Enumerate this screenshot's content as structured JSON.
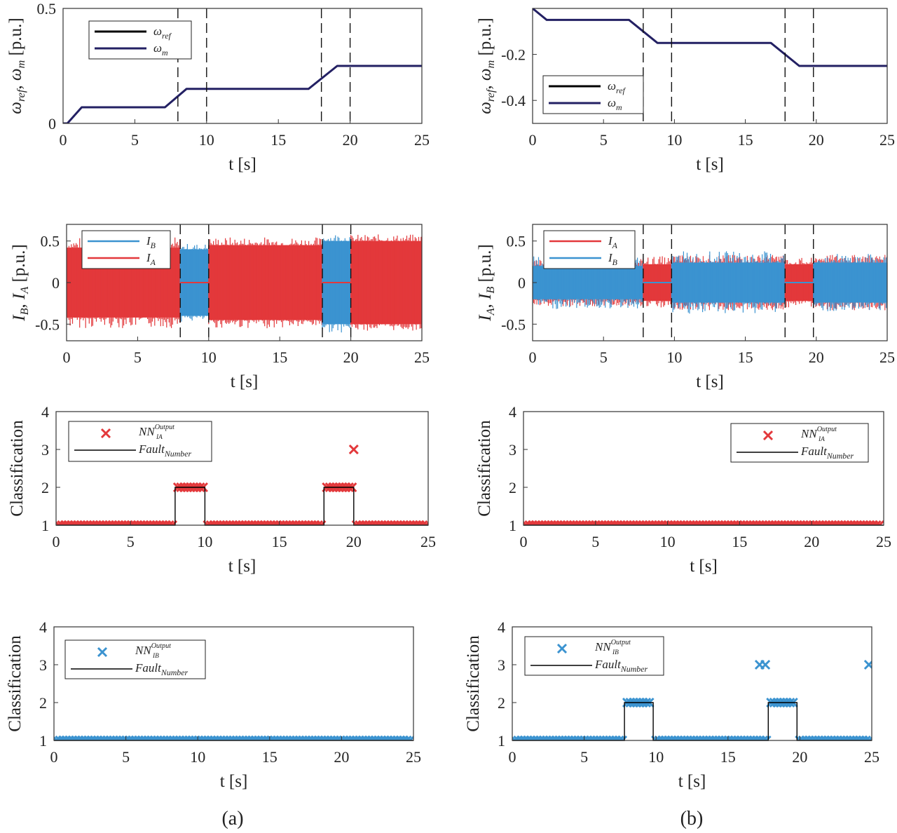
{
  "colors": {
    "ref": "#000000",
    "wm": "#232063",
    "ia": "#e3383b",
    "ib": "#3b93d0",
    "axis": "#333333"
  },
  "captions": [
    "(a)",
    "(b)"
  ],
  "chart_data": [
    {
      "id": "a-speed",
      "type": "line",
      "xlabel": "t [s]",
      "ylabel": "ωref, ωm [p.u.]",
      "xlim": [
        0,
        25
      ],
      "ylim": [
        0,
        0.5
      ],
      "xticks": [
        0,
        5,
        10,
        15,
        20,
        25
      ],
      "yticks": [
        0,
        0.5
      ],
      "vlines": [
        8,
        10,
        18,
        20
      ],
      "legend_position": "top-left",
      "series": [
        {
          "name": "ωref",
          "base": "ω",
          "sub": "ref",
          "color": "#000000",
          "x": [
            0,
            0.3,
            1.3,
            7.1,
            8.6,
            17.1,
            19.1,
            25
          ],
          "y": [
            0,
            0,
            0.07,
            0.07,
            0.15,
            0.15,
            0.25,
            0.25
          ]
        },
        {
          "name": "ωm",
          "base": "ω",
          "sub": "m",
          "color": "#232063",
          "x": [
            0,
            0.3,
            1.3,
            7.1,
            8.6,
            17.1,
            19.1,
            25
          ],
          "y": [
            0,
            0,
            0.07,
            0.07,
            0.15,
            0.15,
            0.25,
            0.25
          ]
        }
      ]
    },
    {
      "id": "b-speed",
      "type": "line",
      "xlabel": "t [s]",
      "ylabel": "ωref, ωm [p.u.]",
      "xlim": [
        0,
        25
      ],
      "ylim": [
        -0.5,
        0
      ],
      "xticks": [
        0,
        5,
        10,
        15,
        20,
        25
      ],
      "yticks": [
        -0.2,
        -0.4
      ],
      "vlines": [
        7.8,
        9.8,
        17.8,
        19.8
      ],
      "legend_position": "bottom-left",
      "series": [
        {
          "name": "ωref",
          "base": "ω",
          "sub": "ref",
          "color": "#000000",
          "x": [
            0,
            1,
            6.8,
            8.8,
            16.8,
            18.8,
            25
          ],
          "y": [
            0,
            -0.05,
            -0.05,
            -0.15,
            -0.15,
            -0.25,
            -0.25
          ]
        },
        {
          "name": "ωm",
          "base": "ω",
          "sub": "m",
          "color": "#232063",
          "x": [
            0,
            1,
            6.8,
            8.8,
            16.8,
            18.8,
            25
          ],
          "y": [
            0,
            -0.05,
            -0.05,
            -0.15,
            -0.15,
            -0.25,
            -0.25
          ]
        }
      ]
    },
    {
      "id": "a-current",
      "type": "line",
      "xlabel": "t [s]",
      "ylabel": "IB, IA [p.u.]",
      "xlim": [
        0,
        25
      ],
      "ylim": [
        -0.7,
        0.7
      ],
      "xticks": [
        0,
        5,
        10,
        15,
        20,
        25
      ],
      "yticks": [
        0.5,
        0,
        -0.5
      ],
      "vlines": [
        8,
        10,
        18,
        20
      ],
      "legend_position": "top-left",
      "series": [
        {
          "name": "IB",
          "base": "I",
          "sub": "B",
          "color": "#3b93d0"
        },
        {
          "name": "IA",
          "base": "I",
          "sub": "A",
          "color": "#e3383b"
        }
      ],
      "bands": [
        {
          "x0": 0,
          "x1": 8,
          "series": "IA",
          "amplitude": 0.42,
          "spikes": 0.55
        },
        {
          "x0": 8,
          "x1": 10,
          "series": "IB",
          "amplitude": 0.4,
          "spikes": 0.47,
          "flat": "IA"
        },
        {
          "x0": 10,
          "x1": 18,
          "series": "IA",
          "amplitude": 0.45,
          "spikes": 0.55
        },
        {
          "x0": 18,
          "x1": 20,
          "series": "IB",
          "amplitude": 0.5,
          "spikes": 0.6,
          "flat": "IA"
        },
        {
          "x0": 20,
          "x1": 25,
          "series": "IA",
          "amplitude": 0.5,
          "spikes": 0.58
        }
      ]
    },
    {
      "id": "b-current",
      "type": "line",
      "xlabel": "t [s]",
      "ylabel": "IA, IB [p.u.]",
      "xlim": [
        0,
        25
      ],
      "ylim": [
        -0.7,
        0.7
      ],
      "xticks": [
        0,
        5,
        10,
        15,
        20,
        25
      ],
      "yticks": [
        0.5,
        0,
        -0.5
      ],
      "vlines": [
        7.8,
        9.8,
        17.8,
        19.8
      ],
      "legend_position": "top-left",
      "series": [
        {
          "name": "IA",
          "base": "I",
          "sub": "A",
          "color": "#e3383b"
        },
        {
          "name": "IB",
          "base": "I",
          "sub": "B",
          "color": "#3b93d0"
        }
      ],
      "bands": [
        {
          "x0": 0,
          "x1": 7.8,
          "series": "IB",
          "amplitude": 0.2,
          "spikes": 0.32,
          "under": "IA"
        },
        {
          "x0": 7.8,
          "x1": 9.8,
          "series": "IA",
          "amplitude": 0.22,
          "spikes": 0.32,
          "flat": "IB"
        },
        {
          "x0": 9.8,
          "x1": 17.8,
          "series": "IB",
          "amplitude": 0.24,
          "spikes": 0.38,
          "under": "IA"
        },
        {
          "x0": 17.8,
          "x1": 19.8,
          "series": "IA",
          "amplitude": 0.22,
          "spikes": 0.3,
          "flat": "IB"
        },
        {
          "x0": 19.8,
          "x1": 25,
          "series": "IB",
          "amplitude": 0.24,
          "spikes": 0.35,
          "under": "IA"
        }
      ]
    },
    {
      "id": "a-class-ia",
      "type": "scatter",
      "xlabel": "t [s]",
      "ylabel": "Classification",
      "xlim": [
        0,
        25
      ],
      "ylim": [
        1,
        4
      ],
      "xticks": [
        0,
        5,
        10,
        15,
        20,
        25
      ],
      "yticks": [
        1,
        2,
        3,
        4
      ],
      "legend_position": "top-left",
      "marker_color": "#e3383b",
      "legend": {
        "nn": "NN",
        "nn_sub": "IA",
        "nn_sup": "Output",
        "fault": "Fault",
        "fault_sub": "Number"
      },
      "fault_number": {
        "x": [
          0,
          8,
          8,
          10,
          10,
          18,
          18,
          20,
          20,
          25
        ],
        "y": [
          1,
          1,
          2,
          2,
          1,
          1,
          2,
          2,
          1,
          1
        ]
      },
      "nn_output_segments": [
        {
          "x0": 0,
          "x1": 8,
          "y": 1
        },
        {
          "x0": 8,
          "x1": 10,
          "y": 2
        },
        {
          "x0": 10,
          "x1": 18,
          "y": 1
        },
        {
          "x0": 18,
          "x1": 20,
          "y": 2
        },
        {
          "x0": 20,
          "x1": 25,
          "y": 1
        }
      ],
      "nn_output_points": [
        {
          "x": 20,
          "y": 3
        }
      ]
    },
    {
      "id": "b-class-ia",
      "type": "scatter",
      "xlabel": "t [s]",
      "ylabel": "Classification",
      "xlim": [
        0,
        25
      ],
      "ylim": [
        1,
        4
      ],
      "xticks": [
        0,
        5,
        10,
        15,
        20,
        25
      ],
      "yticks": [
        1,
        2,
        3,
        4
      ],
      "legend_position": "top-right",
      "marker_color": "#e3383b",
      "legend": {
        "nn": "NN",
        "nn_sub": "IA",
        "nn_sup": "Output",
        "fault": "Fault",
        "fault_sub": "Number"
      },
      "fault_number": {
        "x": [
          0,
          25
        ],
        "y": [
          1,
          1
        ]
      },
      "nn_output_segments": [
        {
          "x0": 0,
          "x1": 25,
          "y": 1
        }
      ],
      "nn_output_points": []
    },
    {
      "id": "a-class-ib",
      "type": "scatter",
      "xlabel": "t [s]",
      "ylabel": "Classification",
      "xlim": [
        0,
        25
      ],
      "ylim": [
        1,
        4
      ],
      "xticks": [
        0,
        5,
        10,
        15,
        20,
        25
      ],
      "yticks": [
        1,
        2,
        3,
        4
      ],
      "legend_position": "top-left",
      "marker_color": "#3b93d0",
      "legend": {
        "nn": "NN",
        "nn_sub": "IB",
        "nn_sup": "Output",
        "fault": "Fault",
        "fault_sub": "Number"
      },
      "fault_number": {
        "x": [
          0,
          25
        ],
        "y": [
          1,
          1
        ]
      },
      "nn_output_segments": [
        {
          "x0": 0,
          "x1": 25,
          "y": 1
        }
      ],
      "nn_output_points": []
    },
    {
      "id": "b-class-ib",
      "type": "scatter",
      "xlabel": "t [s]",
      "ylabel": "Classification",
      "xlim": [
        0,
        25
      ],
      "ylim": [
        1,
        4
      ],
      "xticks": [
        0,
        5,
        10,
        15,
        20,
        25
      ],
      "yticks": [
        1,
        2,
        3,
        4
      ],
      "legend_position": "top-left",
      "marker_color": "#3b93d0",
      "legend": {
        "nn": "NN",
        "nn_sub": "IB",
        "nn_sup": "Output",
        "fault": "Fault",
        "fault_sub": "Number"
      },
      "fault_number": {
        "x": [
          0,
          7.8,
          7.8,
          9.8,
          9.8,
          17.8,
          17.8,
          19.8,
          19.8,
          25
        ],
        "y": [
          1,
          1,
          2,
          2,
          1,
          1,
          2,
          2,
          1,
          1
        ]
      },
      "nn_output_segments": [
        {
          "x0": 0,
          "x1": 7.8,
          "y": 1
        },
        {
          "x0": 7.8,
          "x1": 9.8,
          "y": 2
        },
        {
          "x0": 9.8,
          "x1": 17.8,
          "y": 1
        },
        {
          "x0": 17.8,
          "x1": 19.8,
          "y": 2
        },
        {
          "x0": 19.8,
          "x1": 25,
          "y": 1
        }
      ],
      "nn_output_points": [
        {
          "x": 17.2,
          "y": 3
        },
        {
          "x": 17.6,
          "y": 3
        },
        {
          "x": 24.8,
          "y": 3
        }
      ]
    }
  ]
}
